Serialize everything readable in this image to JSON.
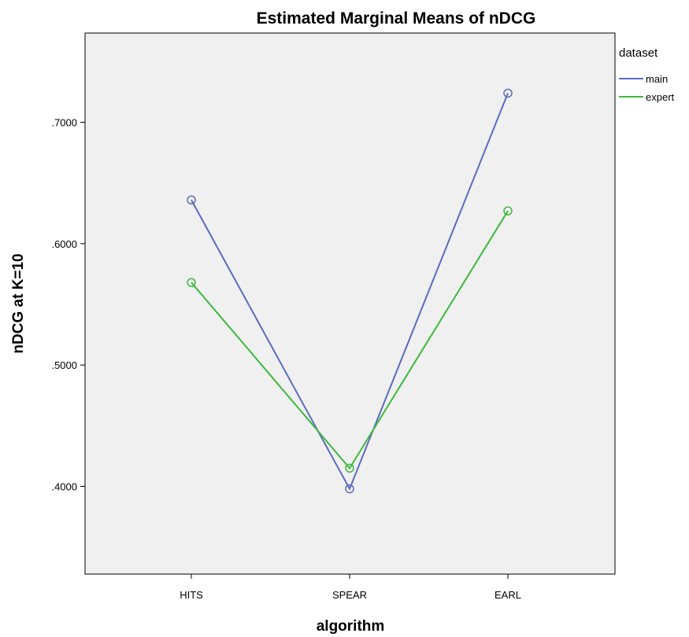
{
  "chart_data": {
    "type": "line",
    "title": "Estimated Marginal Means of nDCG",
    "xlabel": "algorithm",
    "ylabel": "nDCG at K=10",
    "categories": [
      "HITS",
      "SPEAR",
      "EARL"
    ],
    "y_ticks": [
      0.4,
      0.5,
      0.6,
      0.7
    ],
    "y_tick_labels": [
      ".4000",
      ".5000",
      ".6000",
      ".7000"
    ],
    "ylim": [
      0.33,
      0.765
    ],
    "grid": false,
    "legend": {
      "title": "dataset",
      "position": "right"
    },
    "plot_background": "#f0f0f0",
    "series": [
      {
        "name": "main",
        "color": "#5b6bbf",
        "marker": "circle",
        "values": [
          0.636,
          0.398,
          0.724
        ]
      },
      {
        "name": "expert",
        "color": "#3cb93c",
        "marker": "circle",
        "values": [
          0.568,
          0.415,
          0.627
        ]
      }
    ]
  }
}
